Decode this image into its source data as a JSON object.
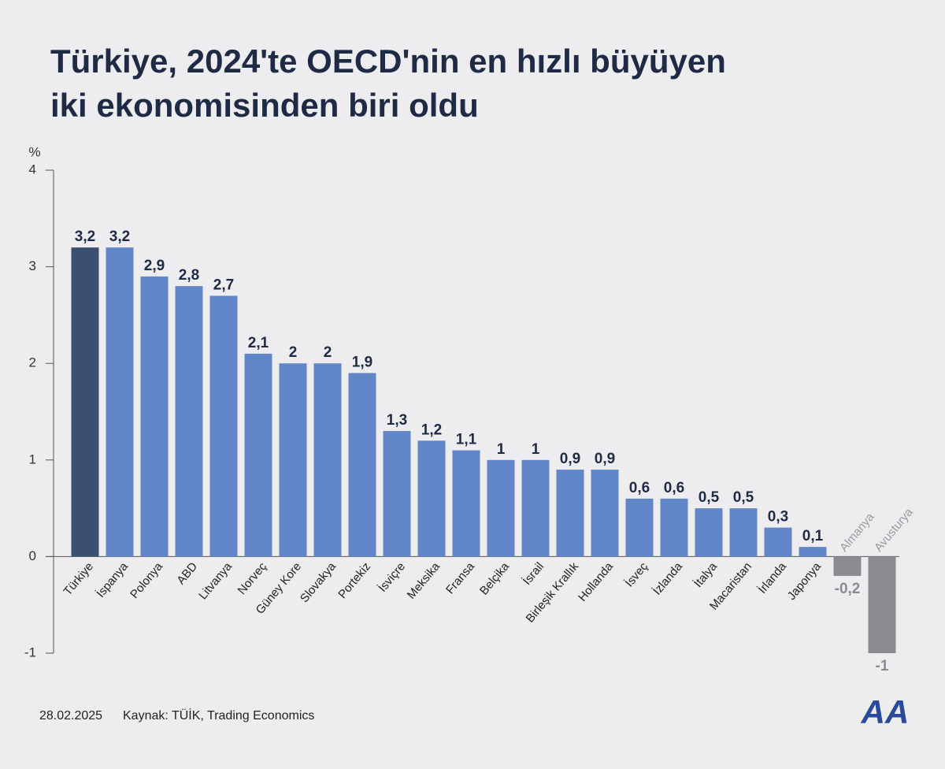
{
  "chart_data": {
    "type": "bar",
    "title": [
      "Türkiye, 2024'te OECD'nin en hızlı büyüyen",
      "iki ekonomisinden biri oldu"
    ],
    "y_label": "%",
    "categories": [
      "Türkiye",
      "İspanya",
      "Polonya",
      "ABD",
      "Litvanya",
      "Norveç",
      "Güney Kore",
      "Slovakya",
      "Portekiz",
      "İsviçre",
      "Meksika",
      "Fransa",
      "Belçika",
      "İsrail",
      "Birleşik Krallık",
      "Hollanda",
      "İsveç",
      "İzlanda",
      "İtalya",
      "Macaristan",
      "İrlanda",
      "Japonya",
      "Almanya",
      "Avusturya"
    ],
    "values": [
      3.2,
      3.2,
      2.9,
      2.8,
      2.7,
      2.1,
      2,
      2,
      1.9,
      1.3,
      1.2,
      1.1,
      1,
      1,
      0.9,
      0.9,
      0.6,
      0.6,
      0.5,
      0.5,
      0.3,
      0.1,
      -0.2,
      -1
    ],
    "value_labels": [
      "3,2",
      "3,2",
      "2,9",
      "2,8",
      "2,7",
      "2,1",
      "2",
      "2",
      "1,9",
      "1,3",
      "1,2",
      "1,1",
      "1",
      "1",
      "0,9",
      "0,9",
      "0,6",
      "0,6",
      "0,5",
      "0,5",
      "0,3",
      "0,1",
      "-0,2",
      "-1"
    ],
    "colors": [
      "#3b4f6e",
      "#6287c9",
      "#6287c9",
      "#6287c9",
      "#6287c9",
      "#6287c9",
      "#6287c9",
      "#6287c9",
      "#6287c9",
      "#6287c9",
      "#6287c9",
      "#6287c9",
      "#6287c9",
      "#6287c9",
      "#6287c9",
      "#6287c9",
      "#6287c9",
      "#6287c9",
      "#6287c9",
      "#6287c9",
      "#6287c9",
      "#6287c9",
      "#8a8b8f",
      "#8a8b8f"
    ],
    "ylim": [
      -1,
      4
    ],
    "yticks": [
      -1,
      0,
      1,
      2,
      3,
      4
    ],
    "date": "28.02.2025",
    "source": "Kaynak: TÜİK, Trading Economics",
    "logo": "AA"
  }
}
